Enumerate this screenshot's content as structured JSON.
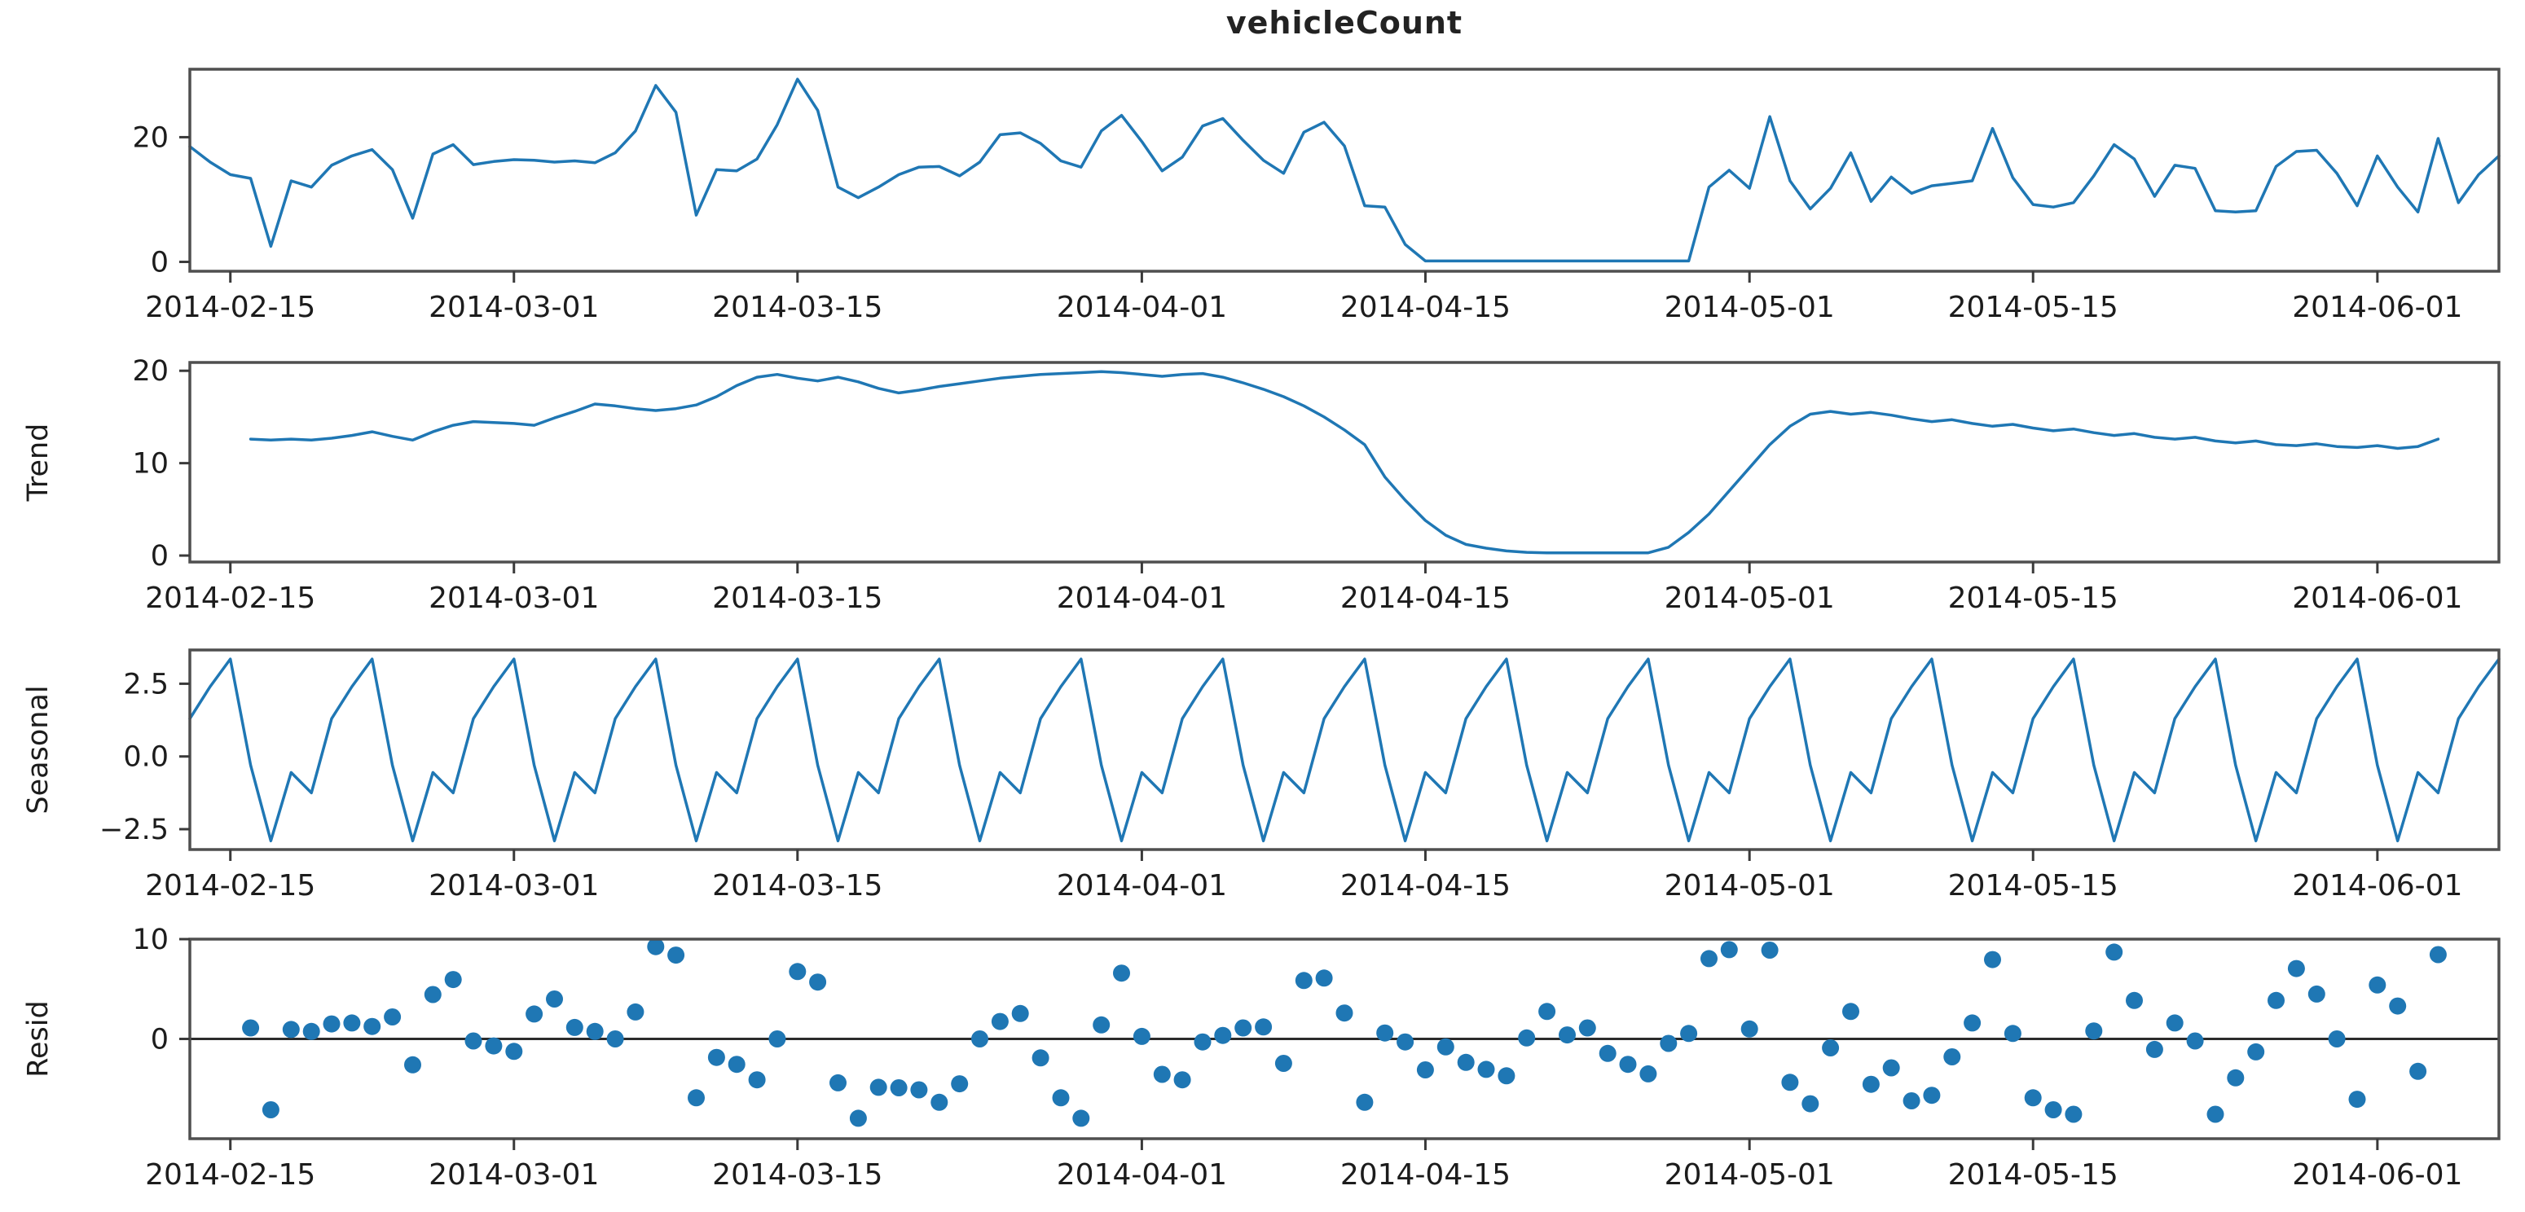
{
  "figure": {
    "title": "vehicleCount"
  },
  "colors": {
    "line": "#1f77b4",
    "marker": "#1f77b4",
    "axis": "#4f4f4f",
    "tick": "#3a3a3a",
    "text": "#1c1c1c",
    "zero_line": "#2b2b2b",
    "background": "#ffffff"
  },
  "chart_data": {
    "type": "line",
    "kind": "seasonal-decomposition",
    "title": "vehicleCount",
    "grid": false,
    "legend": "none",
    "x": {
      "start_date": "2014-02-13",
      "days": 115,
      "frequency": "daily",
      "tick_day_indices": [
        2,
        16,
        30,
        47,
        61,
        77,
        91,
        108
      ],
      "tick_labels": [
        "2014-02-15",
        "2014-03-01",
        "2014-03-15",
        "2014-04-01",
        "2014-04-15",
        "2014-05-01",
        "2014-05-15",
        "2014-06-01"
      ]
    },
    "subplots": [
      {
        "name": "observed",
        "label": "",
        "plot": "line",
        "ylim": [
          -1.5,
          30.9
        ],
        "ytick_values": [
          0,
          20
        ],
        "ytick_labels": [
          "0",
          "20"
        ],
        "start_index": 0,
        "values": [
          18.5,
          16.0,
          14.0,
          13.4,
          2.5,
          13.0,
          12.0,
          15.5,
          17.0,
          18.0,
          14.8,
          7.0,
          17.3,
          18.8,
          15.6,
          16.1,
          16.4,
          16.3,
          16.0,
          16.2,
          15.9,
          17.5,
          21.0,
          28.3,
          24.0,
          7.5,
          14.8,
          14.6,
          16.5,
          22.0,
          29.3,
          24.3,
          12.0,
          10.3,
          12.0,
          14.0,
          15.2,
          15.3,
          13.8,
          16.0,
          20.4,
          20.7,
          19.0,
          16.2,
          15.2,
          21.0,
          23.5,
          19.3,
          14.6,
          16.8,
          21.8,
          23.0,
          19.5,
          16.3,
          14.2,
          20.8,
          22.4,
          18.6,
          9.0,
          8.8,
          2.8,
          0.15,
          0.15,
          0.15,
          0.15,
          0.15,
          0.15,
          0.15,
          0.15,
          0.15,
          0.15,
          0.15,
          0.15,
          0.15,
          0.15,
          12.0,
          14.7,
          11.8,
          23.3,
          13.0,
          8.5,
          11.8,
          17.5,
          9.7,
          13.6,
          11.0,
          12.2,
          12.6,
          13.0,
          21.4,
          13.5,
          9.2,
          8.8,
          9.5,
          13.8,
          18.8,
          16.5,
          10.5,
          15.5,
          15.0,
          8.2,
          8.0,
          8.2,
          15.3,
          17.7,
          17.9,
          14.2,
          9.0,
          17.0,
          12.0,
          8.0,
          19.8,
          9.5,
          14.0,
          17.0
        ]
      },
      {
        "name": "trend",
        "label": "Trend",
        "plot": "line",
        "ylim": [
          -0.7,
          20.9
        ],
        "ytick_values": [
          0,
          10,
          20
        ],
        "ytick_labels": [
          "0",
          "10",
          "20"
        ],
        "start_index": 3,
        "values": [
          12.6,
          12.5,
          12.6,
          12.5,
          12.7,
          13.0,
          13.4,
          12.9,
          12.5,
          13.4,
          14.1,
          14.5,
          14.4,
          14.3,
          14.1,
          14.9,
          15.6,
          16.4,
          16.2,
          15.9,
          15.7,
          15.9,
          16.3,
          17.2,
          18.4,
          19.3,
          19.6,
          19.2,
          18.9,
          19.3,
          18.8,
          18.1,
          17.6,
          17.9,
          18.3,
          18.6,
          18.9,
          19.2,
          19.4,
          19.6,
          19.7,
          19.8,
          19.9,
          19.8,
          19.6,
          19.4,
          19.6,
          19.7,
          19.3,
          18.7,
          18.0,
          17.2,
          16.2,
          15.0,
          13.6,
          12.0,
          8.5,
          6.0,
          3.8,
          2.2,
          1.2,
          0.8,
          0.5,
          0.35,
          0.3,
          0.3,
          0.3,
          0.3,
          0.3,
          0.3,
          0.9,
          2.5,
          4.5,
          7.0,
          9.5,
          12.0,
          14.0,
          15.3,
          15.6,
          15.3,
          15.5,
          15.2,
          14.8,
          14.5,
          14.7,
          14.3,
          14.0,
          14.2,
          13.8,
          13.5,
          13.7,
          13.3,
          13.0,
          13.2,
          12.8,
          12.6,
          12.8,
          12.4,
          12.2,
          12.4,
          12.0,
          11.9,
          12.1,
          11.8,
          11.7,
          11.9,
          11.6,
          11.8,
          12.6
        ]
      },
      {
        "name": "seasonal",
        "label": "Seasonal",
        "plot": "line",
        "ylim": [
          -3.2,
          3.66
        ],
        "ytick_values": [
          2.5,
          0,
          -2.5
        ],
        "ytick_labels": [
          "2.5",
          "0.0",
          "−2.5"
        ],
        "start_index": 0,
        "period_days": 7,
        "weekly_pattern": [
          1.3,
          2.4,
          3.35,
          -0.3,
          -2.9,
          -0.55,
          -1.25
        ]
      },
      {
        "name": "resid",
        "label": "Resid",
        "plot": "scatter",
        "ylim": [
          -10,
          10
        ],
        "ytick_values": [
          0,
          10
        ],
        "ytick_labels": [
          "0",
          "10"
        ],
        "start_index": 3,
        "zero_line": true,
        "derived_from": "observed - trend - seasonal"
      }
    ]
  }
}
